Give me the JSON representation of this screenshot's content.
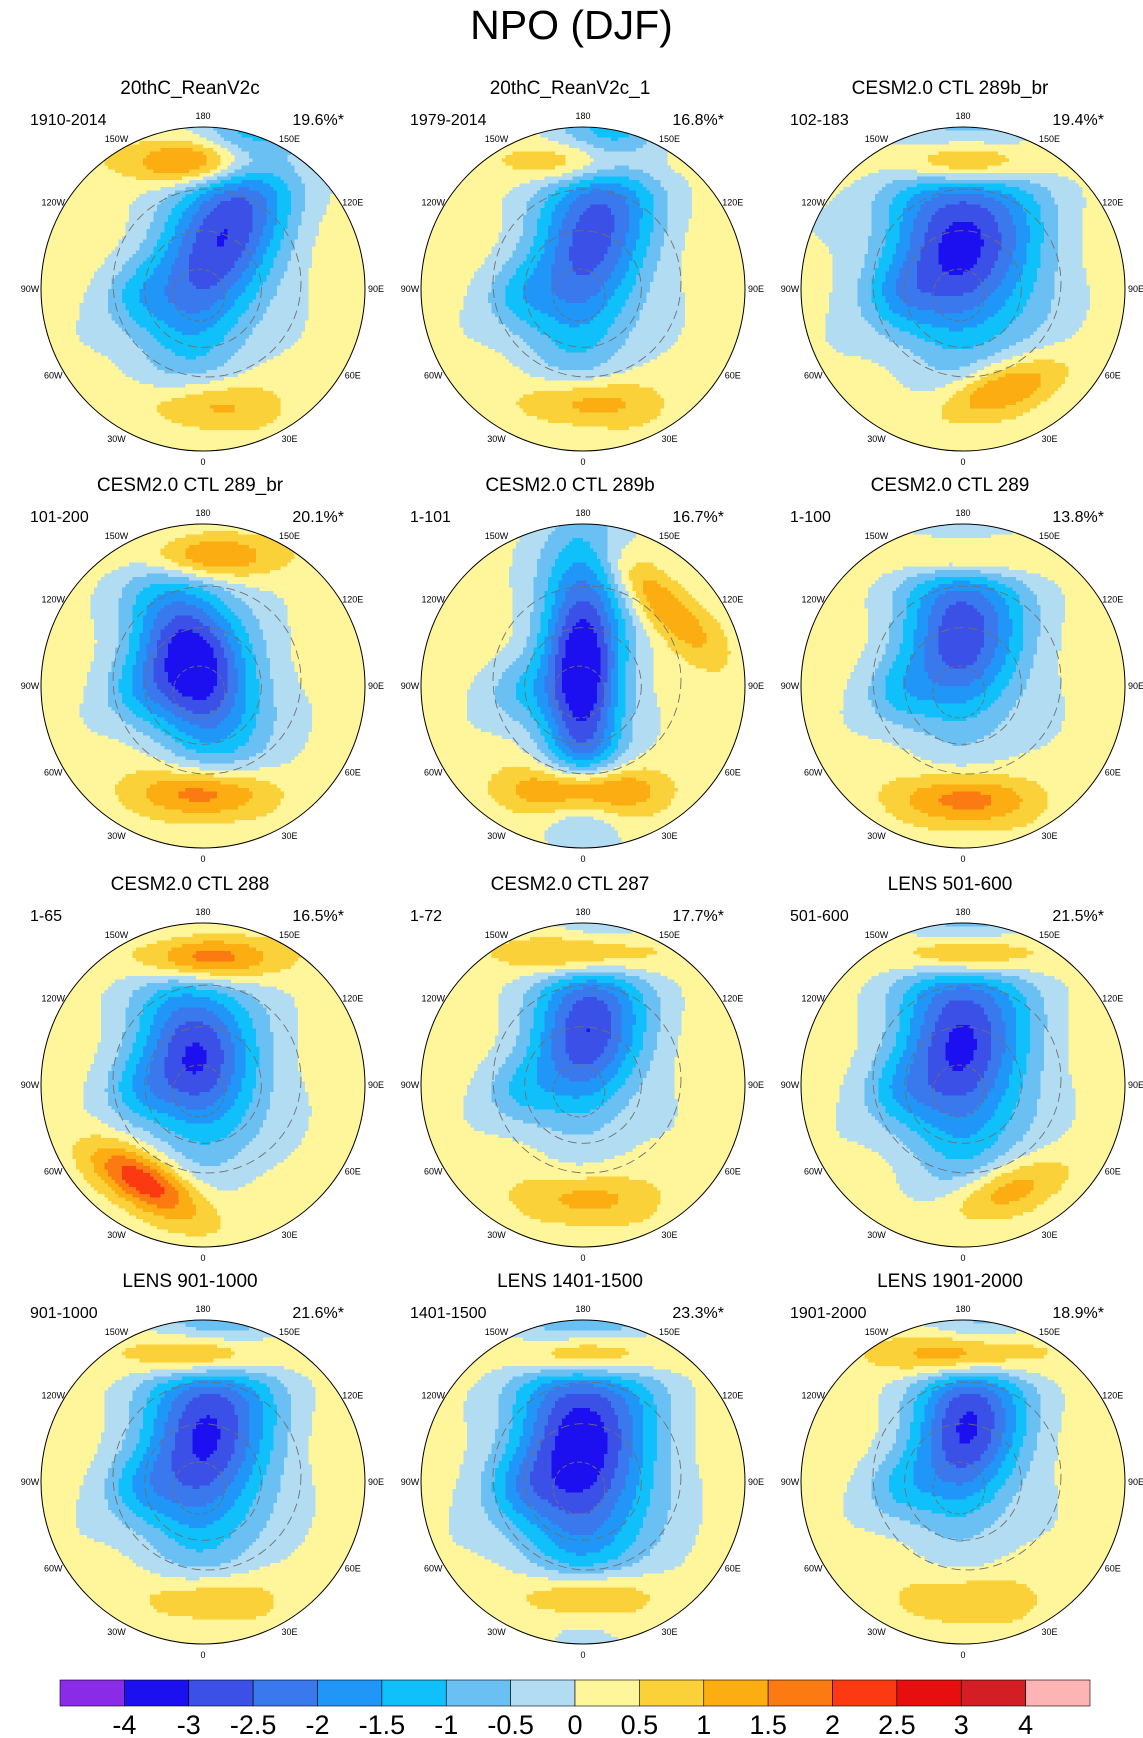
{
  "figure_title": "NPO (DJF)",
  "panels": [
    {
      "title": "20thC_ReanV2c",
      "period": "1910-2014",
      "variance": "19.6%*",
      "style": {
        "low_lon": 160,
        "low_r": 0.34,
        "low_min": -3.2,
        "low_rx": 0.55,
        "low_ry": 0.25,
        "high_lon": 180,
        "high_r": 0.78,
        "high_max": 2.3,
        "atl_lon": 0,
        "atl_r": 0.72,
        "atl_max": 1.2
      }
    },
    {
      "title": "20thC_ReanV2c_1",
      "period": "1979-2014",
      "variance": "16.8%*",
      "style": {
        "low_lon": 170,
        "low_r": 0.36,
        "low_min": -3.0,
        "low_rx": 0.55,
        "low_ry": 0.25,
        "high_lon": 180,
        "high_r": 0.78,
        "high_max": 1.9,
        "atl_lon": 0,
        "atl_r": 0.7,
        "atl_max": 1.4
      }
    },
    {
      "title": "CESM2.0 CTL 289b_br",
      "period": "102-183",
      "variance": "19.4%*",
      "style": {
        "low_lon": 180,
        "low_r": 0.28,
        "low_min": -3.4,
        "low_rx": 0.45,
        "low_ry": 0.33,
        "high_lon": 180,
        "high_r": 0.78,
        "high_max": 2.4,
        "atl_lon": 20,
        "atl_r": 0.66,
        "atl_max": 1.6
      }
    },
    {
      "title": "CESM2.0 CTL 289_br",
      "period": "101-200",
      "variance": "20.1%*",
      "style": {
        "low_lon": 200,
        "low_r": 0.14,
        "low_min": -3.7,
        "low_rx": 0.4,
        "low_ry": 0.24,
        "high_lon": 180,
        "high_r": 0.8,
        "high_max": 1.7,
        "atl_lon": 0,
        "atl_r": 0.66,
        "atl_max": 1.9
      }
    },
    {
      "title": "CESM2.0 CTL 289b",
      "period": "1-101",
      "variance": "16.7%*",
      "style": {
        "low_lon": 180,
        "low_r": 0.1,
        "low_min": -3.8,
        "low_rx": 0.55,
        "low_ry": 0.18,
        "high_lon": 135,
        "high_r": 0.7,
        "high_max": 1.4,
        "atl_lon": 0,
        "atl_r": 0.64,
        "atl_max": 2.6
      }
    },
    {
      "title": "CESM2.0 CTL 289",
      "period": "1-100",
      "variance": "13.8%*",
      "style": {
        "low_lon": 180,
        "low_r": 0.34,
        "low_min": -3.1,
        "low_rx": 0.4,
        "low_ry": 0.26,
        "high_lon": 180,
        "high_r": 0.8,
        "high_max": 1.8,
        "atl_lon": 0,
        "atl_r": 0.7,
        "atl_max": 1.7
      }
    },
    {
      "title": "CESM2.0 CTL 288",
      "period": "1-65",
      "variance": "16.5%*",
      "style": {
        "low_lon": 190,
        "low_r": 0.18,
        "low_min": -3.2,
        "low_rx": 0.38,
        "low_ry": 0.26,
        "high_lon": 180,
        "high_r": 0.78,
        "high_max": 2.2,
        "atl_lon": 330,
        "atl_r": 0.7,
        "atl_max": 2.2
      }
    },
    {
      "title": "CESM2.0 CTL 287",
      "period": "1-72",
      "variance": "17.7%*",
      "style": {
        "low_lon": 175,
        "low_r": 0.36,
        "low_min": -3.2,
        "low_rx": 0.38,
        "low_ry": 0.24,
        "high_lon": 180,
        "high_r": 0.8,
        "high_max": 2.2,
        "atl_lon": 0,
        "atl_r": 0.7,
        "atl_max": 1.1
      }
    },
    {
      "title": "LENS 501-600",
      "period": "501-600",
      "variance": "21.5%*",
      "style": {
        "low_lon": 180,
        "low_r": 0.26,
        "low_min": -3.3,
        "low_rx": 0.5,
        "low_ry": 0.28,
        "high_lon": 180,
        "high_r": 0.8,
        "high_max": 2.4,
        "atl_lon": 20,
        "atl_r": 0.7,
        "atl_max": 1.3
      }
    },
    {
      "title": "LENS 901-1000",
      "period": "901-1000",
      "variance": "21.6%*",
      "style": {
        "low_lon": 175,
        "low_r": 0.3,
        "low_min": -3.3,
        "low_rx": 0.5,
        "low_ry": 0.28,
        "high_lon": 180,
        "high_r": 0.78,
        "high_max": 2.6,
        "atl_lon": 0,
        "atl_r": 0.72,
        "atl_max": 1.1
      }
    },
    {
      "title": "LENS 1401-1500",
      "period": "1401-1500",
      "variance": "23.3%*",
      "style": {
        "low_lon": 180,
        "low_r": 0.22,
        "low_min": -3.6,
        "low_rx": 0.55,
        "low_ry": 0.3,
        "high_lon": 180,
        "high_r": 0.78,
        "high_max": 2.6,
        "atl_lon": 0,
        "atl_r": 0.7,
        "atl_max": 1.6
      }
    },
    {
      "title": "LENS 1901-2000",
      "period": "1901-2000",
      "variance": "18.9%*",
      "style": {
        "low_lon": 175,
        "low_r": 0.36,
        "low_min": -3.3,
        "low_rx": 0.4,
        "low_ry": 0.24,
        "high_lon": 180,
        "high_r": 0.78,
        "high_max": 2.6,
        "atl_lon": 0,
        "atl_r": 0.72,
        "atl_max": 0.9
      }
    }
  ],
  "longitude_labels": [
    {
      "text": "180",
      "lon": 180
    },
    {
      "text": "150W",
      "lon": 210
    },
    {
      "text": "120W",
      "lon": 240
    },
    {
      "text": "90W",
      "lon": 270
    },
    {
      "text": "60W",
      "lon": 300
    },
    {
      "text": "30W",
      "lon": 330
    },
    {
      "text": "0",
      "lon": 0
    },
    {
      "text": "30E",
      "lon": 30
    },
    {
      "text": "60E",
      "lon": 60
    },
    {
      "text": "90E",
      "lon": 90
    },
    {
      "text": "120E",
      "lon": 120
    },
    {
      "text": "150E",
      "lon": 150
    }
  ],
  "colorbar": {
    "levels": [
      "-4",
      "-3",
      "-2.5",
      "-2",
      "-1.5",
      "-1",
      "-0.5",
      "0",
      "0.5",
      "1",
      "1.5",
      "2",
      "2.5",
      "3",
      "4"
    ],
    "boundaries": [
      -4,
      -3,
      -2.5,
      -2,
      -1.5,
      -1,
      -0.5,
      0,
      0.5,
      1,
      1.5,
      2,
      2.5,
      3,
      4
    ],
    "colors": [
      "#8a2be8",
      "#1c0ff0",
      "#3b50e6",
      "#3a78ee",
      "#1f96f8",
      "#0fc0fa",
      "#6ac0f2",
      "#b2dcf2",
      "#fff59a",
      "#fbd13a",
      "#fbad12",
      "#fb7a12",
      "#fb3a12",
      "#e60e0e",
      "#d21e24",
      "#fdb4b4"
    ]
  }
}
